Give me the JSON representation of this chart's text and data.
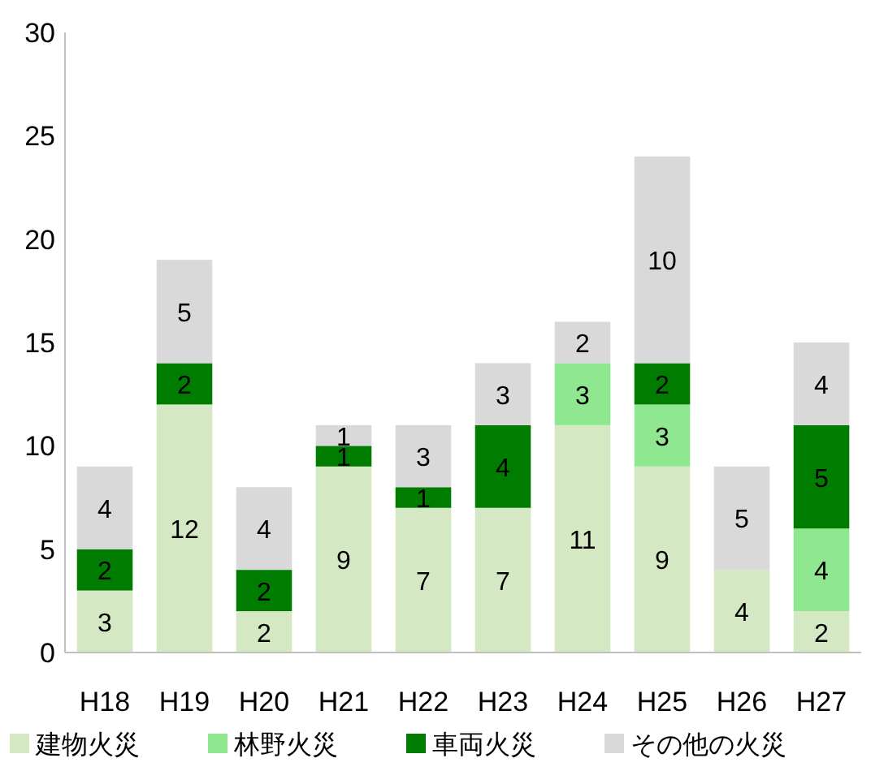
{
  "chart_data": {
    "type": "bar",
    "stacked": true,
    "categories": [
      "H18",
      "H19",
      "H20",
      "H21",
      "H22",
      "H23",
      "H24",
      "H25",
      "H26",
      "H27"
    ],
    "series": [
      {
        "name": "建物火災",
        "color": "#d4e9c3",
        "values": [
          3,
          12,
          2,
          9,
          7,
          7,
          11,
          9,
          4,
          2
        ],
        "value_labels": [
          "3",
          "12",
          "2",
          "9",
          "7",
          "7",
          "11",
          "9",
          "4",
          "2"
        ]
      },
      {
        "name": "林野火災",
        "color": "#8fe88f",
        "values": [
          0,
          0,
          0,
          0,
          0,
          0,
          3,
          3,
          0,
          4
        ],
        "value_labels": [
          null,
          null,
          null,
          null,
          null,
          null,
          "3",
          "3",
          null,
          "4"
        ]
      },
      {
        "name": "車両火災",
        "color": "#007d00",
        "values": [
          2,
          2,
          2,
          1,
          1,
          4,
          0,
          2,
          0,
          5
        ],
        "value_labels": [
          "2",
          "2",
          "2",
          "1",
          "1",
          "4",
          null,
          "2",
          null,
          "5"
        ]
      },
      {
        "name": "その他の火災",
        "color": "#d9d9d9",
        "values": [
          4,
          5,
          4,
          1,
          3,
          3,
          2,
          10,
          5,
          4
        ],
        "value_labels": [
          "4",
          "5",
          "4",
          "1",
          "3",
          "3",
          "2",
          "10",
          "5",
          "4"
        ]
      }
    ],
    "ylim": [
      0,
      30
    ],
    "yticks": [
      0,
      5,
      10,
      15,
      20,
      25,
      30
    ],
    "legend": "bottom"
  }
}
